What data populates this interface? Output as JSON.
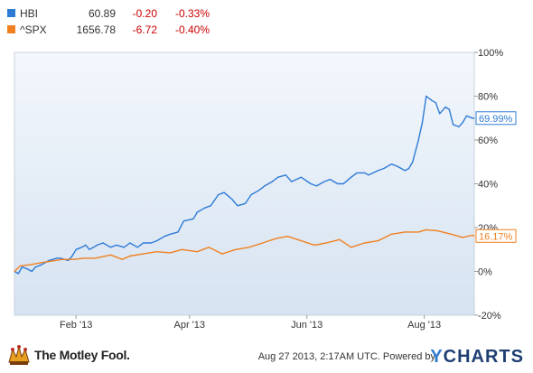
{
  "legend": [
    {
      "symbol": "HBI",
      "price": "60.89",
      "change": "-0.20",
      "pct": "-0.33%",
      "color": "#2e7bd6"
    },
    {
      "symbol": "^SPX",
      "price": "1656.78",
      "change": "-6.72",
      "pct": "-0.40%",
      "color": "#f08020"
    }
  ],
  "chart_data": {
    "type": "line",
    "x_tick_labels": [
      "Feb '13",
      "Apr '13",
      "Jun '13",
      "Aug '13"
    ],
    "y_tick_labels": [
      "100%",
      "80%",
      "60%",
      "40%",
      "20%",
      "0%",
      "-20%"
    ],
    "ylim": [
      -20,
      100
    ],
    "y_unit": "%",
    "grid": false,
    "legend_position": "top-left",
    "series": [
      {
        "name": "HBI",
        "color": "#2e7bd6",
        "end_label": "69.99%",
        "points": [
          [
            "2012-12-31",
            0
          ],
          [
            "2013-01-02",
            -1
          ],
          [
            "2013-01-04",
            2
          ],
          [
            "2013-01-07",
            1
          ],
          [
            "2013-01-09",
            0
          ],
          [
            "2013-01-11",
            2
          ],
          [
            "2013-01-14",
            3
          ],
          [
            "2013-01-16",
            4
          ],
          [
            "2013-01-18",
            5
          ],
          [
            "2013-01-22",
            6
          ],
          [
            "2013-01-24",
            6
          ],
          [
            "2013-01-28",
            5
          ],
          [
            "2013-01-30",
            7
          ],
          [
            "2013-02-01",
            10
          ],
          [
            "2013-02-04",
            11
          ],
          [
            "2013-02-06",
            12
          ],
          [
            "2013-02-08",
            10
          ],
          [
            "2013-02-12",
            12
          ],
          [
            "2013-02-15",
            13
          ],
          [
            "2013-02-19",
            11
          ],
          [
            "2013-02-22",
            12
          ],
          [
            "2013-02-26",
            11
          ],
          [
            "2013-03-01",
            13
          ],
          [
            "2013-03-05",
            11
          ],
          [
            "2013-03-08",
            13
          ],
          [
            "2013-03-12",
            13
          ],
          [
            "2013-03-15",
            14
          ],
          [
            "2013-03-19",
            16
          ],
          [
            "2013-03-22",
            17
          ],
          [
            "2013-03-26",
            18
          ],
          [
            "2013-03-29",
            23
          ],
          [
            "2013-04-03",
            24
          ],
          [
            "2013-04-05",
            27
          ],
          [
            "2013-04-09",
            29
          ],
          [
            "2013-04-12",
            30
          ],
          [
            "2013-04-16",
            35
          ],
          [
            "2013-04-19",
            36
          ],
          [
            "2013-04-23",
            33
          ],
          [
            "2013-04-26",
            30
          ],
          [
            "2013-04-30",
            31
          ],
          [
            "2013-05-03",
            35
          ],
          [
            "2013-05-07",
            37
          ],
          [
            "2013-05-10",
            39
          ],
          [
            "2013-05-14",
            41
          ],
          [
            "2013-05-17",
            43
          ],
          [
            "2013-05-21",
            44
          ],
          [
            "2013-05-24",
            41
          ],
          [
            "2013-05-29",
            43
          ],
          [
            "2013-06-03",
            40
          ],
          [
            "2013-06-06",
            39
          ],
          [
            "2013-06-10",
            41
          ],
          [
            "2013-06-13",
            42
          ],
          [
            "2013-06-17",
            40
          ],
          [
            "2013-06-20",
            40
          ],
          [
            "2013-06-24",
            43
          ],
          [
            "2013-06-27",
            45
          ],
          [
            "2013-07-01",
            45
          ],
          [
            "2013-07-03",
            44
          ],
          [
            "2013-07-08",
            46
          ],
          [
            "2013-07-11",
            47
          ],
          [
            "2013-07-15",
            49
          ],
          [
            "2013-07-18",
            48
          ],
          [
            "2013-07-22",
            46
          ],
          [
            "2013-07-24",
            47
          ],
          [
            "2013-07-26",
            50
          ],
          [
            "2013-07-29",
            60
          ],
          [
            "2013-07-31",
            68
          ],
          [
            "2013-08-02",
            80
          ],
          [
            "2013-08-05",
            78
          ],
          [
            "2013-08-07",
            77
          ],
          [
            "2013-08-09",
            72
          ],
          [
            "2013-08-12",
            75
          ],
          [
            "2013-08-14",
            74
          ],
          [
            "2013-08-16",
            67
          ],
          [
            "2013-08-19",
            66
          ],
          [
            "2013-08-21",
            68
          ],
          [
            "2013-08-23",
            71
          ],
          [
            "2013-08-26",
            70
          ],
          [
            "2013-08-27",
            69.99
          ]
        ]
      },
      {
        "name": "^SPX",
        "color": "#f08020",
        "end_label": "16.17%",
        "points": [
          [
            "2012-12-31",
            0
          ],
          [
            "2013-01-03",
            2.5
          ],
          [
            "2013-01-08",
            3
          ],
          [
            "2013-01-14",
            4
          ],
          [
            "2013-01-18",
            4.5
          ],
          [
            "2013-01-25",
            5.5
          ],
          [
            "2013-01-31",
            5.5
          ],
          [
            "2013-02-05",
            6
          ],
          [
            "2013-02-11",
            6
          ],
          [
            "2013-02-19",
            7.5
          ],
          [
            "2013-02-25",
            5.5
          ],
          [
            "2013-03-01",
            7
          ],
          [
            "2013-03-08",
            8
          ],
          [
            "2013-03-15",
            9
          ],
          [
            "2013-03-22",
            8.5
          ],
          [
            "2013-03-28",
            10
          ],
          [
            "2013-04-05",
            9
          ],
          [
            "2013-04-11",
            11
          ],
          [
            "2013-04-18",
            8
          ],
          [
            "2013-04-25",
            10
          ],
          [
            "2013-05-02",
            11
          ],
          [
            "2013-05-09",
            13
          ],
          [
            "2013-05-16",
            15
          ],
          [
            "2013-05-22",
            16
          ],
          [
            "2013-05-29",
            14
          ],
          [
            "2013-06-05",
            12
          ],
          [
            "2013-06-11",
            13
          ],
          [
            "2013-06-18",
            14.5
          ],
          [
            "2013-06-24",
            11
          ],
          [
            "2013-07-01",
            13
          ],
          [
            "2013-07-08",
            14
          ],
          [
            "2013-07-15",
            17
          ],
          [
            "2013-07-22",
            18
          ],
          [
            "2013-07-29",
            18
          ],
          [
            "2013-08-02",
            19
          ],
          [
            "2013-08-08",
            18.5
          ],
          [
            "2013-08-15",
            17
          ],
          [
            "2013-08-21",
            15.5
          ],
          [
            "2013-08-26",
            16.5
          ],
          [
            "2013-08-27",
            16.17
          ]
        ]
      }
    ]
  },
  "footer": {
    "fool_text": "The Motley Fool.",
    "credit": "Aug 27 2013, 2:17AM UTC.  Powered by",
    "ycharts_y": "Y",
    "ycharts_rest": "CHARTS"
  }
}
